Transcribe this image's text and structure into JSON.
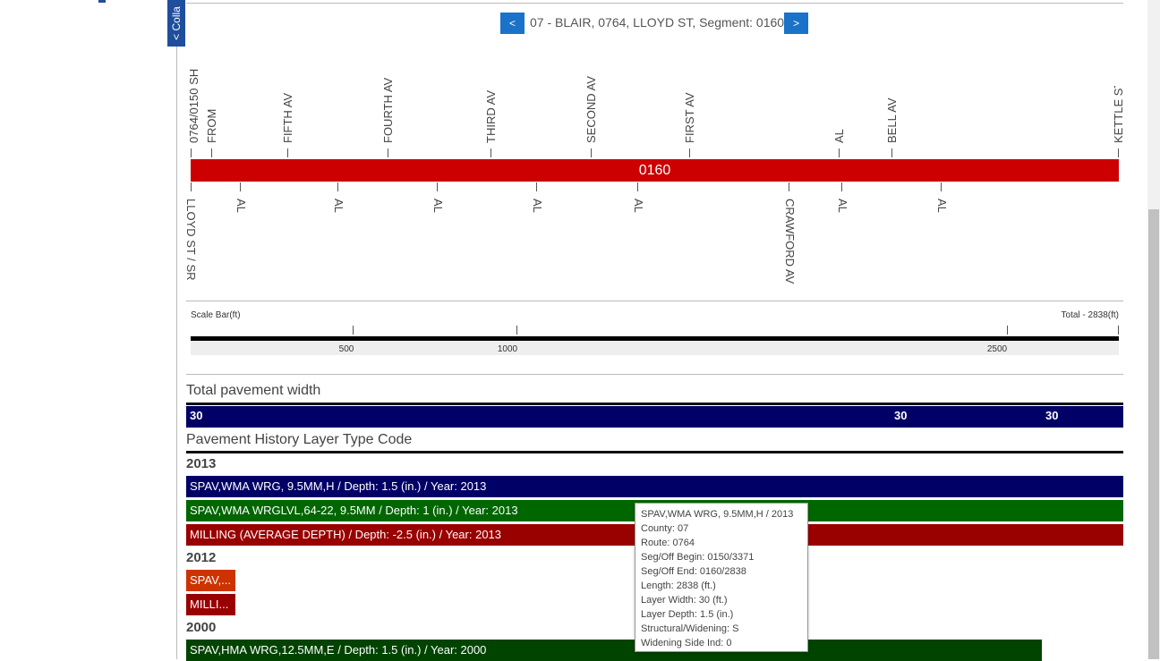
{
  "panel": {
    "collapse_label": "< Colla"
  },
  "nav": {
    "prev_label": "<",
    "next_label": ">",
    "title": "07 - BLAIR, 0764, LLOYD ST, Segment: 0160"
  },
  "segment": {
    "label": "0160",
    "color": "#cc0000",
    "top_labels": [
      "0764/0150 SH",
      "FROM",
      "FIFTH AV",
      "FOURTH AV",
      "THIRD AV",
      "SECOND AV",
      "FIRST AV",
      "AL",
      "BELL AV",
      "KETTLE ST"
    ],
    "bottom_labels": [
      "LLOYD ST / SR",
      "AL",
      "AL",
      "AL",
      "AL",
      "AL",
      "CRAWFORD AV",
      "AL",
      "AL"
    ]
  },
  "scale": {
    "title": "Scale Bar(ft)",
    "total": "Total - 2838(ft)",
    "ticks": [
      "500",
      "1000",
      "2500"
    ]
  },
  "pavement_width": {
    "title": "Total pavement width",
    "values": [
      "30",
      "30",
      "30"
    ],
    "color": "#000066"
  },
  "history": {
    "title": "Pavement History Layer Type Code",
    "years": [
      {
        "year": "2013",
        "layers": [
          {
            "text": "SPAV,WMA WRG, 9.5MM,H / Depth: 1.5 (in.) / Year: 2013",
            "color": "#000066"
          },
          {
            "text": "SPAV,WMA WRGLVL,64-22, 9.5MM / Depth: 1 (in.) / Year: 2013",
            "color": "#006600"
          },
          {
            "text": "MILLING (AVERAGE DEPTH) / Depth: -2.5 (in.) / Year: 2013",
            "color": "#990000"
          }
        ]
      },
      {
        "year": "2012",
        "layers": [
          {
            "text": "SPAV,...",
            "color": "#cc3300"
          },
          {
            "text": "MILLI...",
            "color": "#990000"
          }
        ]
      },
      {
        "year": "2000",
        "layers": [
          {
            "text": "SPAV,HMA WRG,12.5MM,E / Depth: 1.5 (in.) / Year: 2000",
            "color": "#004400"
          }
        ]
      }
    ]
  },
  "tooltip": {
    "lines": [
      "SPAV,WMA WRG, 9.5MM,H / 2013",
      "County: 07",
      "Route: 0764",
      "Seg/Off Begin: 0150/3371",
      "Seg/Off End: 0160/2838",
      "Length: 2838 (ft.)",
      "Layer Width: 30 (ft.)",
      "Layer Depth: 1.5 (in.)",
      "Structural/Widening: S",
      "Widening Side Ind: 0"
    ]
  }
}
